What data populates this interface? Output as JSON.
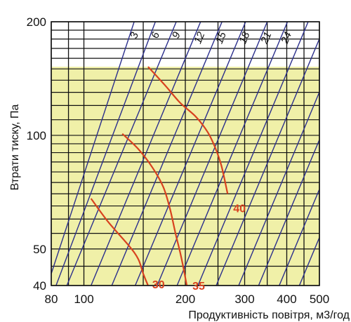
{
  "chart_data": {
    "type": "line",
    "xlabel": "Продуктивність повітря, м3/год",
    "ylabel": "Втрати тиску, Па",
    "x_scale": "log",
    "y_scale": "log",
    "xlim": [
      80,
      500
    ],
    "ylim": [
      40,
      200
    ],
    "x_ticks": [
      {
        "value": 80,
        "label": "80"
      },
      {
        "value": 100,
        "label": "100"
      },
      {
        "value": 200,
        "label": "200"
      },
      {
        "value": 300,
        "label": "300"
      },
      {
        "value": 400,
        "label": "400"
      },
      {
        "value": 500,
        "label": "500"
      }
    ],
    "y_ticks": [
      {
        "value": 40,
        "label": "40"
      },
      {
        "value": 50,
        "label": "50"
      },
      {
        "value": 100,
        "label": "100"
      },
      {
        "value": 200,
        "label": "200"
      }
    ],
    "x_grid": [
      80,
      90,
      100,
      150,
      200,
      250,
      300,
      350,
      400,
      450,
      500
    ],
    "y_grid": [
      40,
      45,
      50,
      55,
      60,
      65,
      70,
      75,
      80,
      85,
      90,
      95,
      100,
      110,
      120,
      130,
      140,
      150,
      160,
      170,
      180,
      190,
      200
    ],
    "grid": true,
    "shaded_region": {
      "y_max": 152,
      "color": "#f0f0a8"
    },
    "colors": {
      "grid": "#111111",
      "diagonal": "#2b2f8c",
      "curve": "#d8421f",
      "shade": "#f0f0a8"
    },
    "diagonal_series": [
      {
        "name": "3",
        "points": [
          [
            80,
            43
          ],
          [
            141,
            200
          ]
        ]
      },
      {
        "name": "6",
        "points": [
          [
            80,
            37
          ],
          [
            163,
            200
          ]
        ]
      },
      {
        "name": "9",
        "points": [
          [
            89,
            40
          ],
          [
            188,
            200
          ]
        ]
      },
      {
        "name": "12",
        "points": [
          [
            105,
            40
          ],
          [
            222,
            200
          ]
        ]
      },
      {
        "name": "15",
        "points": [
          [
            121,
            40
          ],
          [
            257,
            200
          ]
        ]
      },
      {
        "name": "18",
        "points": [
          [
            142,
            40
          ],
          [
            302,
            200
          ]
        ]
      },
      {
        "name": "21",
        "points": [
          [
            165,
            40
          ],
          [
            350,
            200
          ]
        ]
      },
      {
        "name": "24",
        "points": [
          [
            189,
            40
          ],
          [
            402,
            200
          ]
        ]
      },
      {
        "name": "",
        "points": [
          [
            218,
            40
          ],
          [
            463,
            200
          ]
        ]
      },
      {
        "name": "",
        "points": [
          [
            247,
            40
          ],
          [
            525,
            200
          ]
        ]
      },
      {
        "name": "",
        "points": [
          [
            288,
            40
          ],
          [
            611,
            200
          ]
        ]
      },
      {
        "name": "",
        "points": [
          [
            330,
            40
          ],
          [
            700,
            200
          ]
        ]
      },
      {
        "name": "",
        "points": [
          [
            380,
            40
          ],
          [
            806,
            200
          ]
        ]
      },
      {
        "name": "",
        "points": [
          [
            436,
            40
          ],
          [
            925,
            200
          ]
        ]
      }
    ],
    "series": [
      {
        "name": "30",
        "points": [
          [
            105,
            68
          ],
          [
            118,
            59
          ],
          [
            136,
            51
          ],
          [
            145,
            47
          ],
          [
            150,
            43
          ],
          [
            155,
            40
          ]
        ]
      },
      {
        "name": "35",
        "points": [
          [
            130,
            101
          ],
          [
            145,
            92
          ],
          [
            160,
            82
          ],
          [
            172,
            73
          ],
          [
            180,
            64
          ],
          [
            187,
            55
          ],
          [
            193,
            49
          ],
          [
            197,
            45
          ],
          [
            202,
            40
          ]
        ]
      },
      {
        "name": "40",
        "points": [
          [
            155,
            152
          ],
          [
            175,
            135
          ],
          [
            193,
            122
          ],
          [
            215,
            112
          ],
          [
            233,
            102
          ],
          [
            245,
            93
          ],
          [
            256,
            83
          ],
          [
            267,
            70
          ]
        ]
      }
    ]
  }
}
